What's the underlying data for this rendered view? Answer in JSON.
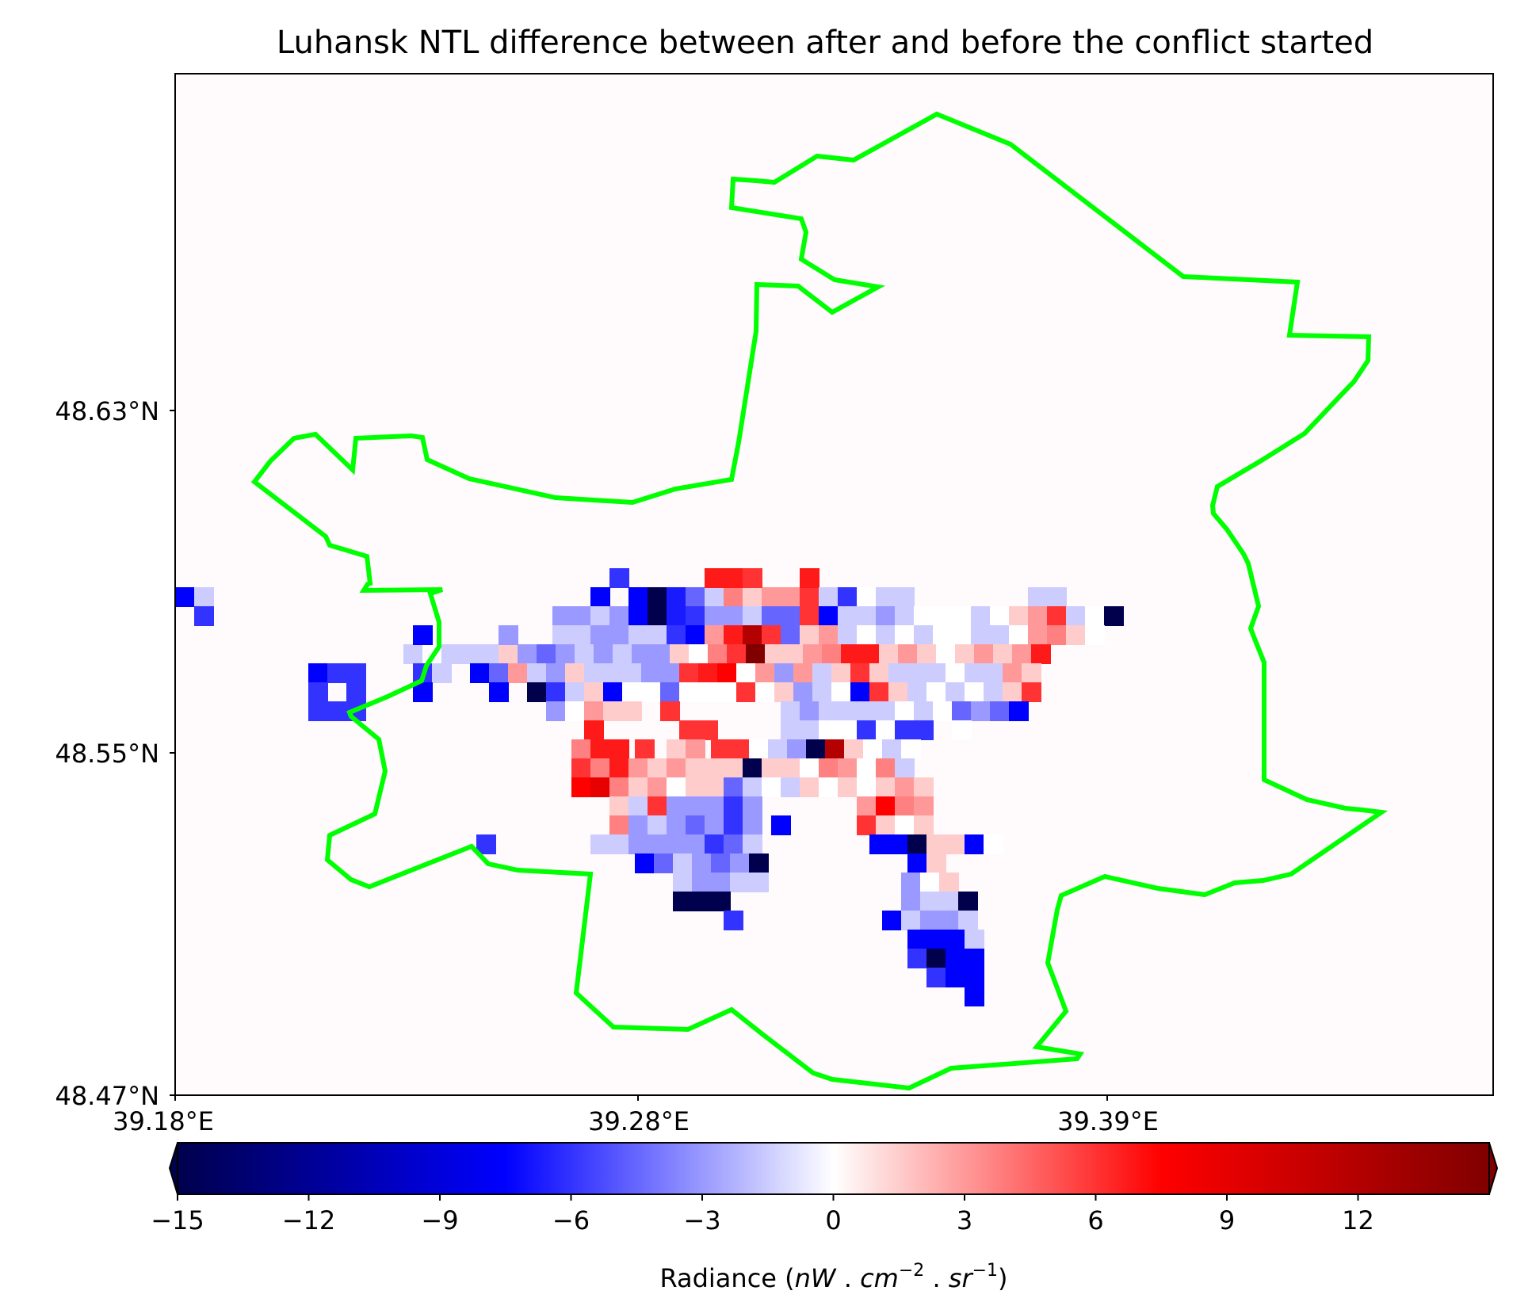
{
  "chart_data": {
    "type": "heatmap",
    "title": "Luhansk NTL difference between after and before the conflict started",
    "x_ticks": [
      "39.18°E",
      "39.28°E",
      "39.39°E"
    ],
    "y_ticks": [
      "48.63°N",
      "48.55°N",
      "48.47°N"
    ],
    "colorbar": {
      "label_prefix": "Radiance (",
      "label_unit_nw": "nW",
      "label_sep1": " . ",
      "label_unit_cm": "cm",
      "label_exp_cm": "−2",
      "label_sep2": " . ",
      "label_unit_sr": "sr",
      "label_exp_sr": "−1",
      "label_suffix": ")",
      "ticks": [
        "−15",
        "−12",
        "−9",
        "−6",
        "−3",
        "0",
        "3",
        "6",
        "9",
        "12"
      ],
      "tick_values": [
        -15,
        -12,
        -9,
        -6,
        -3,
        0,
        3,
        6,
        9,
        12
      ],
      "range": [
        -15,
        15
      ],
      "colormap": "seismic",
      "extend": "both"
    },
    "grid": false,
    "boundary_color": "#00ff00",
    "background_color": "#fffafc"
  }
}
